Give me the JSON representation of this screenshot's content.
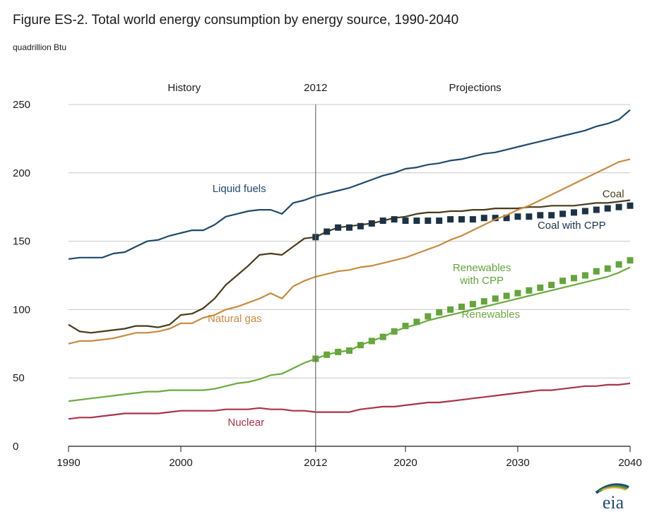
{
  "header": {
    "title": "Figure ES-2. Total world energy consumption by energy source, 1990-2040",
    "unit": "quadrillion Btu"
  },
  "logo": {
    "text": "eia",
    "icon": "eia-logo-icon",
    "colors": [
      "#1f4e79",
      "#4f9a3a",
      "#f0a830"
    ]
  },
  "chart_data": {
    "type": "line",
    "title": "Figure ES-2. Total world energy consumption by energy source, 1990-2040",
    "ylabel": "quadrillion Btu",
    "xlabel": "",
    "xlim": [
      1990,
      2040
    ],
    "ylim": [
      0,
      250
    ],
    "x_ticks": [
      1990,
      2000,
      2012,
      2020,
      2030,
      2040
    ],
    "x_tick_labels": [
      "1990",
      "2000",
      "2012",
      "2020",
      "2030",
      "2040"
    ],
    "y_ticks": [
      0,
      50,
      100,
      150,
      200,
      250
    ],
    "y_tick_labels": [
      "0",
      "50",
      "100",
      "150",
      "200",
      "250"
    ],
    "grid": "horizontal",
    "divider": {
      "x": 2012,
      "label": "2012"
    },
    "zone_labels": [
      {
        "text": "History",
        "x": 2000.3
      },
      {
        "text": "2012",
        "x": 2012
      },
      {
        "text": "Projections",
        "x": 2026.2
      }
    ],
    "series": [
      {
        "name": "Liquid fuels",
        "color": "#1f4a6b",
        "style": "line",
        "label": {
          "text": "Liquid fuels",
          "x": 2005.2,
          "y": 186
        },
        "x": [
          1990,
          1991,
          1992,
          1993,
          1994,
          1995,
          1996,
          1997,
          1998,
          1999,
          2000,
          2001,
          2002,
          2003,
          2004,
          2005,
          2006,
          2007,
          2008,
          2009,
          2010,
          2011,
          2012,
          2013,
          2014,
          2015,
          2016,
          2017,
          2018,
          2019,
          2020,
          2021,
          2022,
          2023,
          2024,
          2025,
          2026,
          2027,
          2028,
          2029,
          2030,
          2031,
          2032,
          2033,
          2034,
          2035,
          2036,
          2037,
          2038,
          2039,
          2040
        ],
        "values": [
          137,
          138,
          138,
          138,
          141,
          142,
          146,
          150,
          151,
          154,
          156,
          158,
          158,
          162,
          168,
          170,
          172,
          173,
          173,
          170,
          178,
          180,
          183,
          185,
          187,
          189,
          192,
          195,
          198,
          200,
          203,
          204,
          206,
          207,
          209,
          210,
          212,
          214,
          215,
          217,
          219,
          221,
          223,
          225,
          227,
          229,
          231,
          234,
          236,
          239,
          246
        ]
      },
      {
        "name": "Coal",
        "color": "#4a3b18",
        "style": "line",
        "label": {
          "text": "Coal",
          "x": 2038.5,
          "y": 182
        },
        "x": [
          1990,
          1991,
          1992,
          1993,
          1994,
          1995,
          1996,
          1997,
          1998,
          1999,
          2000,
          2001,
          2002,
          2003,
          2004,
          2005,
          2006,
          2007,
          2008,
          2009,
          2010,
          2011,
          2012,
          2013,
          2014,
          2015,
          2016,
          2017,
          2018,
          2019,
          2020,
          2021,
          2022,
          2023,
          2024,
          2025,
          2026,
          2027,
          2028,
          2029,
          2030,
          2031,
          2032,
          2033,
          2034,
          2035,
          2036,
          2037,
          2038,
          2039,
          2040
        ],
        "values": [
          89,
          84,
          83,
          84,
          85,
          86,
          88,
          88,
          87,
          89,
          96,
          97,
          101,
          108,
          118,
          125,
          132,
          140,
          141,
          140,
          146,
          152,
          153,
          157,
          160,
          161,
          162,
          163,
          165,
          167,
          168,
          170,
          171,
          171,
          172,
          172,
          173,
          173,
          174,
          174,
          174,
          175,
          175,
          176,
          176,
          176,
          177,
          178,
          178,
          179,
          180
        ]
      },
      {
        "name": "Coal with CPP",
        "color": "#1c3347",
        "style": "square-markers",
        "label": {
          "text": "Coal with CPP",
          "x": 2034.8,
          "y": 159
        },
        "x": [
          2012,
          2013,
          2014,
          2015,
          2016,
          2017,
          2018,
          2019,
          2020,
          2021,
          2022,
          2023,
          2024,
          2025,
          2026,
          2027,
          2028,
          2029,
          2030,
          2031,
          2032,
          2033,
          2034,
          2035,
          2036,
          2037,
          2038,
          2039,
          2040
        ],
        "values": [
          153,
          157,
          160,
          160,
          161,
          163,
          165,
          166,
          165,
          165,
          165,
          165,
          166,
          166,
          166,
          167,
          167,
          167,
          168,
          168,
          169,
          169,
          170,
          171,
          172,
          173,
          174,
          175,
          176
        ]
      },
      {
        "name": "Natural gas",
        "color": "#c98a3e",
        "style": "line",
        "label": {
          "text": "Natural gas",
          "x": 2004.8,
          "y": 91
        },
        "x": [
          1990,
          1991,
          1992,
          1993,
          1994,
          1995,
          1996,
          1997,
          1998,
          1999,
          2000,
          2001,
          2002,
          2003,
          2004,
          2005,
          2006,
          2007,
          2008,
          2009,
          2010,
          2011,
          2012,
          2013,
          2014,
          2015,
          2016,
          2017,
          2018,
          2019,
          2020,
          2021,
          2022,
          2023,
          2024,
          2025,
          2026,
          2027,
          2028,
          2029,
          2030,
          2031,
          2032,
          2033,
          2034,
          2035,
          2036,
          2037,
          2038,
          2039,
          2040
        ],
        "values": [
          75,
          77,
          77,
          78,
          79,
          81,
          83,
          83,
          84,
          86,
          90,
          90,
          94,
          96,
          100,
          102,
          105,
          108,
          112,
          108,
          117,
          121,
          124,
          126,
          128,
          129,
          131,
          132,
          134,
          136,
          138,
          141,
          144,
          147,
          151,
          154,
          158,
          162,
          166,
          169,
          173,
          176,
          180,
          184,
          188,
          192,
          196,
          200,
          204,
          208,
          210
        ]
      },
      {
        "name": "Renewables with CPP",
        "color": "#64a43a",
        "style": "square-markers",
        "label": {
          "text": "Renewables\nwith CPP",
          "x": 2026.8,
          "y": 128
        },
        "x": [
          2012,
          2013,
          2014,
          2015,
          2016,
          2017,
          2018,
          2019,
          2020,
          2021,
          2022,
          2023,
          2024,
          2025,
          2026,
          2027,
          2028,
          2029,
          2030,
          2031,
          2032,
          2033,
          2034,
          2035,
          2036,
          2037,
          2038,
          2039,
          2040
        ],
        "values": [
          64,
          67,
          69,
          70,
          74,
          77,
          80,
          84,
          88,
          91,
          95,
          98,
          100,
          102,
          104,
          106,
          108,
          110,
          112,
          114,
          116,
          118,
          121,
          123,
          125,
          128,
          130,
          133,
          136
        ]
      },
      {
        "name": "Renewables",
        "color": "#6aaa3e",
        "style": "line",
        "label": {
          "text": "Renewables",
          "x": 2027.6,
          "y": 94
        },
        "x": [
          1990,
          1991,
          1992,
          1993,
          1994,
          1995,
          1996,
          1997,
          1998,
          1999,
          2000,
          2001,
          2002,
          2003,
          2004,
          2005,
          2006,
          2007,
          2008,
          2009,
          2010,
          2011,
          2012,
          2013,
          2014,
          2015,
          2016,
          2017,
          2018,
          2019,
          2020,
          2021,
          2022,
          2023,
          2024,
          2025,
          2026,
          2027,
          2028,
          2029,
          2030,
          2031,
          2032,
          2033,
          2034,
          2035,
          2036,
          2037,
          2038,
          2039,
          2040
        ],
        "values": [
          33,
          34,
          35,
          36,
          37,
          38,
          39,
          40,
          40,
          41,
          41,
          41,
          41,
          42,
          44,
          46,
          47,
          49,
          52,
          53,
          57,
          61,
          64,
          67,
          69,
          70,
          74,
          77,
          80,
          84,
          87,
          89,
          92,
          94,
          96,
          98,
          100,
          102,
          104,
          106,
          108,
          110,
          112,
          114,
          116,
          118,
          120,
          122,
          124,
          127,
          131
        ]
      },
      {
        "name": "Nuclear",
        "color": "#a8334a",
        "style": "line",
        "label": {
          "text": "Nuclear",
          "x": 2005.8,
          "y": 15
        },
        "x": [
          1990,
          1991,
          1992,
          1993,
          1994,
          1995,
          1996,
          1997,
          1998,
          1999,
          2000,
          2001,
          2002,
          2003,
          2004,
          2005,
          2006,
          2007,
          2008,
          2009,
          2010,
          2011,
          2012,
          2013,
          2014,
          2015,
          2016,
          2017,
          2018,
          2019,
          2020,
          2021,
          2022,
          2023,
          2024,
          2025,
          2026,
          2027,
          2028,
          2029,
          2030,
          2031,
          2032,
          2033,
          2034,
          2035,
          2036,
          2037,
          2038,
          2039,
          2040
        ],
        "values": [
          20,
          21,
          21,
          22,
          23,
          24,
          24,
          24,
          24,
          25,
          26,
          26,
          26,
          26,
          27,
          27,
          27,
          28,
          27,
          27,
          26,
          26,
          25,
          25,
          25,
          25,
          27,
          28,
          29,
          29,
          30,
          31,
          32,
          32,
          33,
          34,
          35,
          36,
          37,
          38,
          39,
          40,
          41,
          41,
          42,
          43,
          44,
          44,
          45,
          45,
          46
        ]
      }
    ]
  }
}
